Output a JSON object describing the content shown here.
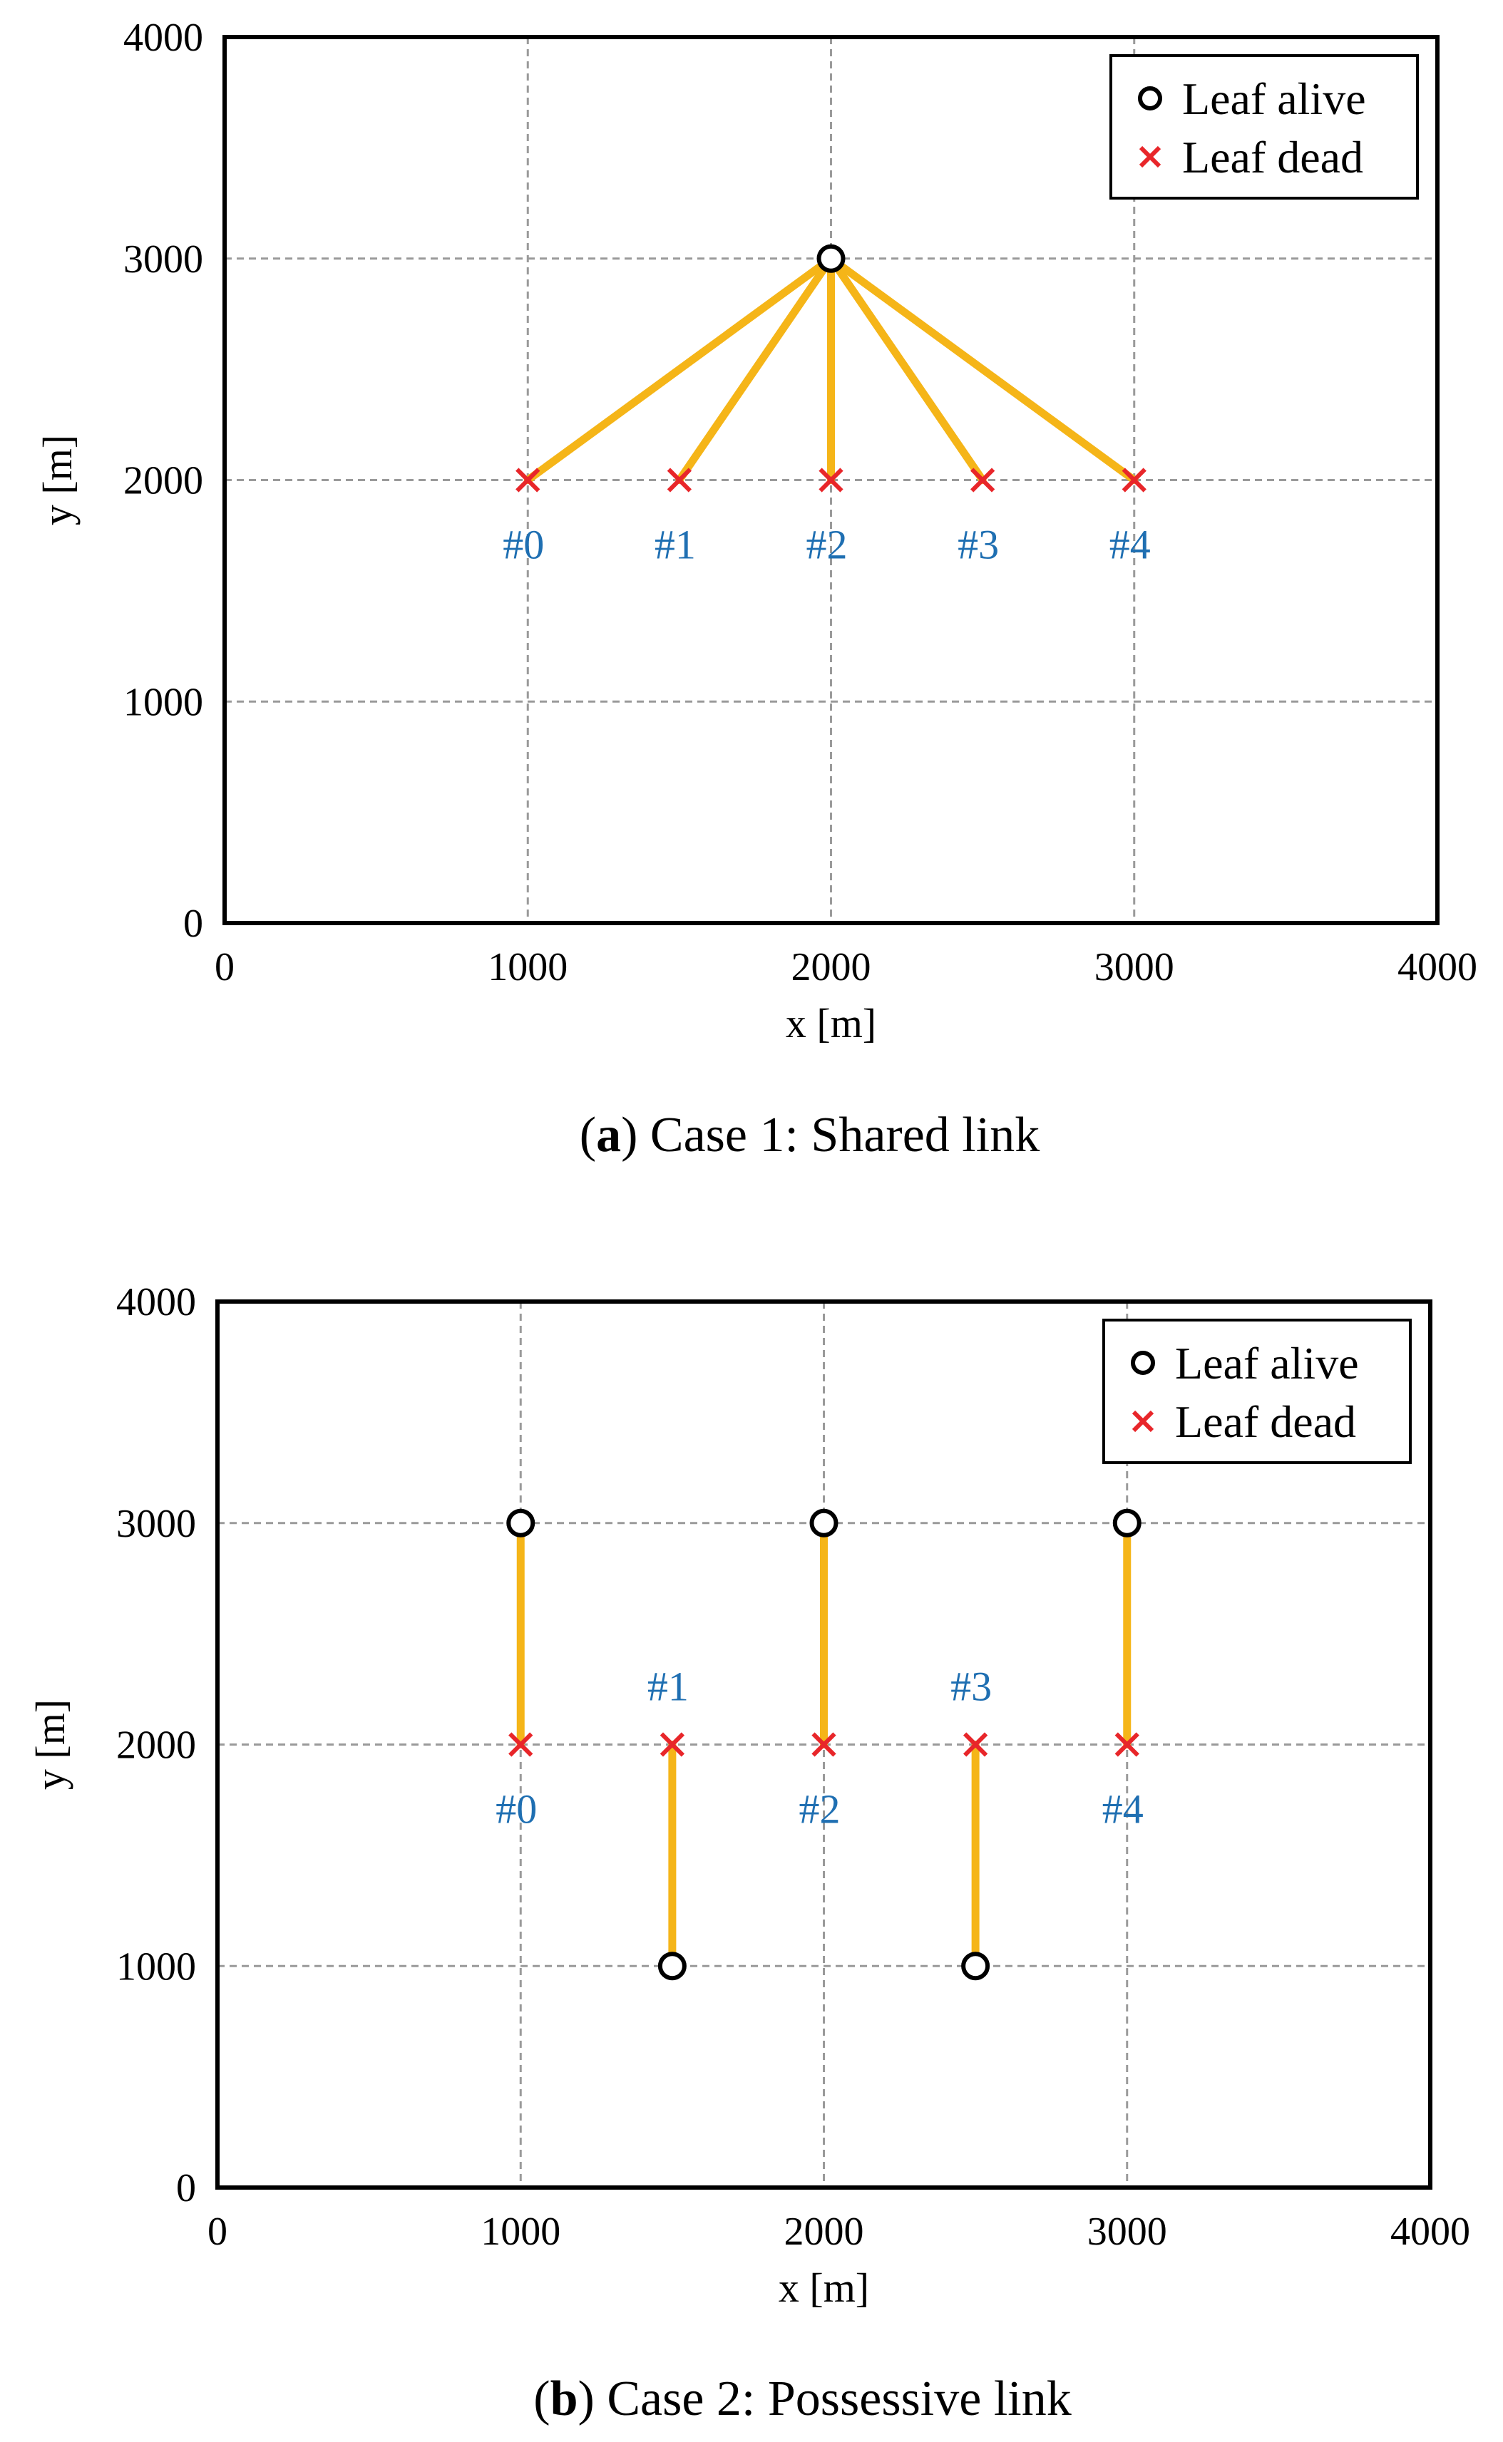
{
  "chart_data": [
    {
      "type": "scatter",
      "xlabel": "x [m]",
      "ylabel": "y [m]",
      "xlim": [
        0,
        4000
      ],
      "ylim": [
        0,
        4000
      ],
      "xticks": [
        0,
        1000,
        2000,
        3000,
        4000
      ],
      "yticks": [
        0,
        1000,
        2000,
        3000,
        4000
      ],
      "xtick_labels": [
        "0",
        "1000",
        "2000",
        "3000",
        "4000"
      ],
      "ytick_labels": [
        "0",
        "1000",
        "2000",
        "3000",
        "4000"
      ],
      "grid": true,
      "legend_position": "top-right",
      "legend": [
        {
          "name": "Leaf alive",
          "marker": "circle",
          "color": "#000000"
        },
        {
          "name": "Leaf dead",
          "marker": "x",
          "color": "#e8262a"
        }
      ],
      "link_color": "#f5b518",
      "label_color": "#1f6fb2",
      "caption": {
        "letter": "a",
        "text": ") Case 1: Shared link",
        "open": "("
      },
      "alive": [
        {
          "x": 2000,
          "y": 3000
        }
      ],
      "dead": [
        {
          "x": 1000,
          "y": 2000,
          "label": "#0",
          "label_side": "below"
        },
        {
          "x": 1500,
          "y": 2000,
          "label": "#1",
          "label_side": "below"
        },
        {
          "x": 2000,
          "y": 2000,
          "label": "#2",
          "label_side": "below"
        },
        {
          "x": 2500,
          "y": 2000,
          "label": "#3",
          "label_side": "below"
        },
        {
          "x": 3000,
          "y": 2000,
          "label": "#4",
          "label_side": "below"
        }
      ],
      "links": [
        {
          "from": [
            2000,
            3000
          ],
          "to": [
            1000,
            2000
          ]
        },
        {
          "from": [
            2000,
            3000
          ],
          "to": [
            1500,
            2000
          ]
        },
        {
          "from": [
            2000,
            3000
          ],
          "to": [
            2000,
            2000
          ]
        },
        {
          "from": [
            2000,
            3000
          ],
          "to": [
            2500,
            2000
          ]
        },
        {
          "from": [
            2000,
            3000
          ],
          "to": [
            3000,
            2000
          ]
        }
      ]
    },
    {
      "type": "scatter",
      "xlabel": "x [m]",
      "ylabel": "y [m]",
      "xlim": [
        0,
        4000
      ],
      "ylim": [
        0,
        4000
      ],
      "xticks": [
        0,
        1000,
        2000,
        3000,
        4000
      ],
      "yticks": [
        0,
        1000,
        2000,
        3000,
        4000
      ],
      "xtick_labels": [
        "0",
        "1000",
        "2000",
        "3000",
        "4000"
      ],
      "ytick_labels": [
        "0",
        "1000",
        "2000",
        "3000",
        "4000"
      ],
      "grid": true,
      "legend_position": "top-right",
      "legend": [
        {
          "name": "Leaf alive",
          "marker": "circle",
          "color": "#000000"
        },
        {
          "name": "Leaf dead",
          "marker": "x",
          "color": "#e8262a"
        }
      ],
      "link_color": "#f5b518",
      "label_color": "#1f6fb2",
      "caption": {
        "letter": "b",
        "text": ") Case 2: Possessive link",
        "open": "("
      },
      "alive": [
        {
          "x": 1000,
          "y": 3000
        },
        {
          "x": 1500,
          "y": 1000
        },
        {
          "x": 2000,
          "y": 3000
        },
        {
          "x": 2500,
          "y": 1000
        },
        {
          "x": 3000,
          "y": 3000
        }
      ],
      "dead": [
        {
          "x": 1000,
          "y": 2000,
          "label": "#0",
          "label_side": "below"
        },
        {
          "x": 1500,
          "y": 2000,
          "label": "#1",
          "label_side": "above"
        },
        {
          "x": 2000,
          "y": 2000,
          "label": "#2",
          "label_side": "below"
        },
        {
          "x": 2500,
          "y": 2000,
          "label": "#3",
          "label_side": "above"
        },
        {
          "x": 3000,
          "y": 2000,
          "label": "#4",
          "label_side": "below"
        }
      ],
      "links": [
        {
          "from": [
            1000,
            3000
          ],
          "to": [
            1000,
            2000
          ]
        },
        {
          "from": [
            1500,
            1000
          ],
          "to": [
            1500,
            2000
          ]
        },
        {
          "from": [
            2000,
            3000
          ],
          "to": [
            2000,
            2000
          ]
        },
        {
          "from": [
            2500,
            1000
          ],
          "to": [
            2500,
            2000
          ]
        },
        {
          "from": [
            3000,
            3000
          ],
          "to": [
            3000,
            2000
          ]
        }
      ]
    }
  ]
}
